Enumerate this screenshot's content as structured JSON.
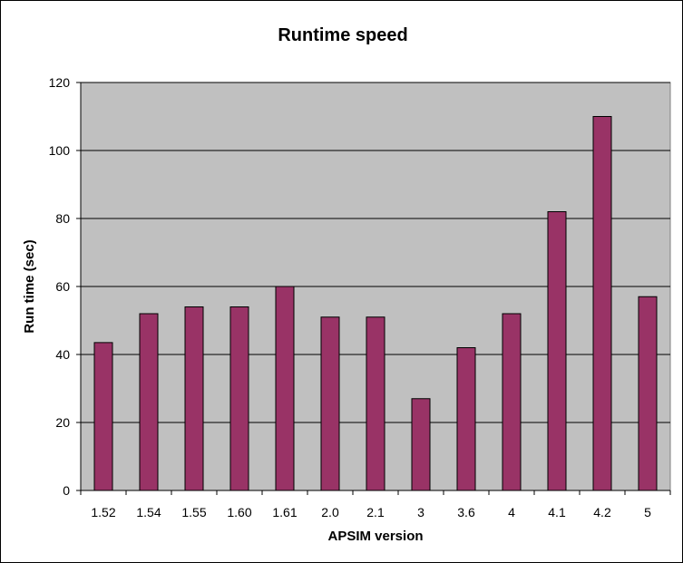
{
  "chart_data": {
    "type": "bar",
    "title": "Runtime speed",
    "xlabel": "APSIM version",
    "ylabel": "Run time (sec)",
    "categories": [
      "1.52",
      "1.54",
      "1.55",
      "1.60",
      "1.61",
      "2.0",
      "2.1",
      "3",
      "3.6",
      "4",
      "4.1",
      "4.2",
      "5"
    ],
    "values": [
      43.5,
      52,
      54,
      54,
      60,
      51,
      51,
      27,
      42,
      52,
      82,
      110,
      57
    ],
    "ylim": [
      0,
      120
    ],
    "yticks": [
      "0",
      "20",
      "40",
      "60",
      "80",
      "100",
      "120"
    ],
    "grid": true,
    "legend": "none",
    "colors": {
      "bar": "#993366",
      "plot_background": "#c0c0c0",
      "gridline": "#000000"
    }
  }
}
